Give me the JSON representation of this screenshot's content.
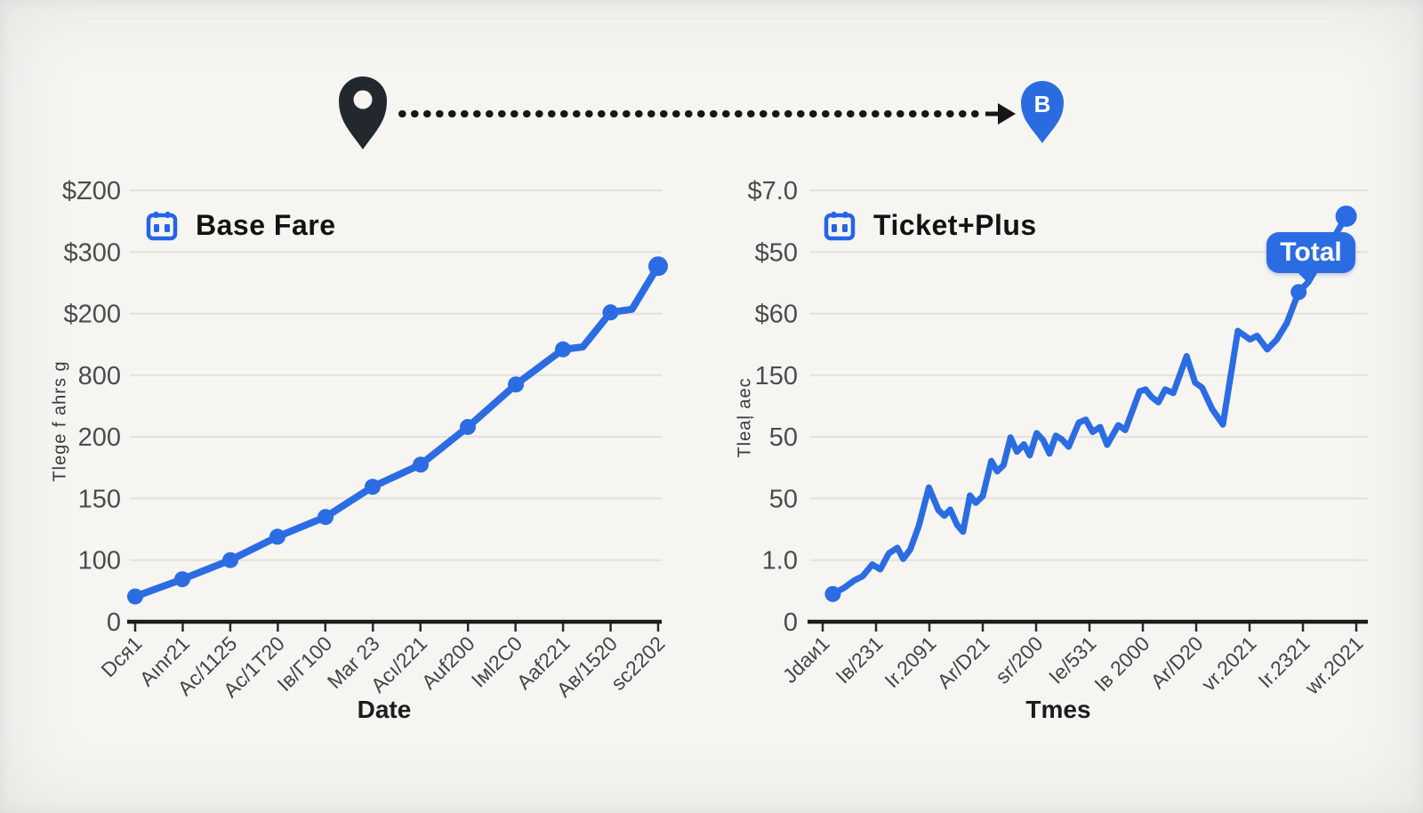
{
  "route": {
    "pin_a_color": "#23272e",
    "pin_b_color": "#2a6ce0",
    "pin_b_label": "B",
    "connector_color": "#161616"
  },
  "chart_data": [
    {
      "type": "line",
      "title": "Base Fare",
      "xlabel": "Date",
      "ylabel": "Tlege f ahrs g",
      "x_ticks": [
        "Dcя1",
        "Aınr21",
        "Ac/1125",
        "Ac/1T20",
        "Iв/Г100",
        "Mar 23",
        "Acı/221",
        "Auf200",
        "Iмl2C0",
        "Aaf221",
        "Aв/1520",
        "sc2202"
      ],
      "y_ticks_bottom_to_top": [
        "0",
        "100",
        "150",
        "200",
        "800",
        "$200",
        "$300",
        "$Z00"
      ],
      "ylim_units": [
        0,
        7
      ],
      "grid": true,
      "legend_position": "none",
      "line_color": "#2b6ce3",
      "line_width": 8,
      "points": [
        [
          0.0,
          0.41
        ],
        [
          0.09,
          0.69
        ],
        [
          0.182,
          1.0
        ],
        [
          0.272,
          1.38
        ],
        [
          0.364,
          1.7
        ],
        [
          0.454,
          2.19
        ],
        [
          0.546,
          2.55
        ],
        [
          0.636,
          3.16
        ],
        [
          0.728,
          3.85
        ],
        [
          0.818,
          4.42
        ],
        [
          0.856,
          4.46
        ],
        [
          0.909,
          5.02
        ],
        [
          0.95,
          5.07
        ],
        [
          1.0,
          5.77
        ]
      ],
      "markers": [
        [
          0.0,
          0.41,
          9
        ],
        [
          0.09,
          0.69,
          9
        ],
        [
          0.182,
          1.0,
          9
        ],
        [
          0.272,
          1.38,
          9
        ],
        [
          0.364,
          1.7,
          9
        ],
        [
          0.454,
          2.19,
          9
        ],
        [
          0.546,
          2.55,
          9
        ],
        [
          0.636,
          3.16,
          9
        ],
        [
          0.728,
          3.85,
          9
        ],
        [
          0.818,
          4.42,
          9
        ],
        [
          0.909,
          5.02,
          9
        ],
        [
          1.0,
          5.77,
          11
        ]
      ]
    },
    {
      "type": "line",
      "title": "Ticket+Plus",
      "xlabel": "Tmes",
      "ylabel": "Tleaļ aec",
      "x_ticks": [
        "Jdaи1",
        "Iв/231",
        "Ir.2091",
        "Ar/D21",
        "sr/200",
        "Ie/531",
        "Iв 2000",
        "Ar/D20",
        "vr.2021",
        "Ir.2321",
        "wr.2021"
      ],
      "y_ticks_bottom_to_top": [
        "0",
        "1.0",
        "50",
        "50",
        "150",
        "$60",
        "$50",
        "$7.0"
      ],
      "ylim_units": [
        0,
        7
      ],
      "grid": true,
      "legend_position": "none",
      "line_color": "#2b6ce3",
      "line_width": 7,
      "annotation": "Total",
      "annotation_color": "#2b6ce3",
      "points": [
        [
          0.019,
          0.45
        ],
        [
          0.04,
          0.55
        ],
        [
          0.059,
          0.67
        ],
        [
          0.075,
          0.74
        ],
        [
          0.093,
          0.93
        ],
        [
          0.108,
          0.85
        ],
        [
          0.124,
          1.11
        ],
        [
          0.14,
          1.2
        ],
        [
          0.151,
          1.02
        ],
        [
          0.164,
          1.17
        ],
        [
          0.18,
          1.55
        ],
        [
          0.199,
          2.18
        ],
        [
          0.217,
          1.81
        ],
        [
          0.228,
          1.72
        ],
        [
          0.239,
          1.82
        ],
        [
          0.252,
          1.57
        ],
        [
          0.263,
          1.46
        ],
        [
          0.276,
          2.05
        ],
        [
          0.287,
          1.93
        ],
        [
          0.3,
          2.04
        ],
        [
          0.316,
          2.61
        ],
        [
          0.327,
          2.44
        ],
        [
          0.339,
          2.54
        ],
        [
          0.352,
          2.99
        ],
        [
          0.364,
          2.76
        ],
        [
          0.377,
          2.88
        ],
        [
          0.388,
          2.7
        ],
        [
          0.401,
          3.06
        ],
        [
          0.413,
          2.95
        ],
        [
          0.425,
          2.73
        ],
        [
          0.437,
          3.02
        ],
        [
          0.448,
          2.96
        ],
        [
          0.461,
          2.84
        ],
        [
          0.48,
          3.23
        ],
        [
          0.493,
          3.28
        ],
        [
          0.506,
          3.08
        ],
        [
          0.52,
          3.16
        ],
        [
          0.533,
          2.87
        ],
        [
          0.554,
          3.19
        ],
        [
          0.567,
          3.11
        ],
        [
          0.594,
          3.74
        ],
        [
          0.605,
          3.77
        ],
        [
          0.616,
          3.65
        ],
        [
          0.629,
          3.56
        ],
        [
          0.642,
          3.77
        ],
        [
          0.657,
          3.71
        ],
        [
          0.682,
          4.31
        ],
        [
          0.698,
          3.88
        ],
        [
          0.711,
          3.8
        ],
        [
          0.73,
          3.45
        ],
        [
          0.75,
          3.2
        ],
        [
          0.778,
          4.72
        ],
        [
          0.801,
          4.58
        ],
        [
          0.814,
          4.64
        ],
        [
          0.833,
          4.42
        ],
        [
          0.851,
          4.58
        ],
        [
          0.87,
          4.85
        ],
        [
          0.892,
          5.35
        ],
        [
          0.91,
          5.51
        ],
        [
          0.981,
          6.58
        ]
      ],
      "markers": [
        [
          0.019,
          0.45,
          9
        ],
        [
          0.892,
          5.35,
          9
        ],
        [
          0.981,
          6.58,
          12
        ]
      ]
    }
  ]
}
